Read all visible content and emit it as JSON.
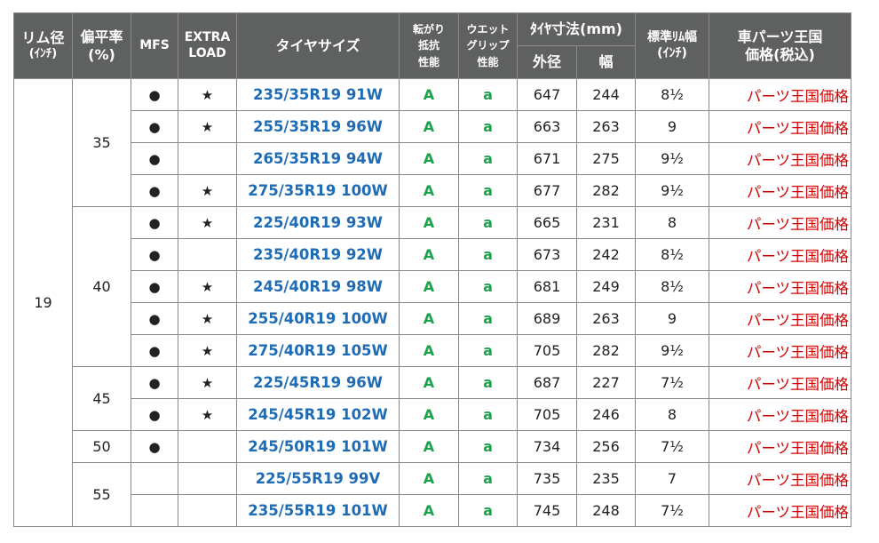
{
  "headers": {
    "rim_line1": "リム径",
    "rim_line2": "(ｲﾝﾁ)",
    "aspect_line1": "偏平率",
    "aspect_line2": "(%)",
    "mfs": "MFS",
    "xl_line1": "EXTRA",
    "xl_line2": "LOAD",
    "size": "タイヤサイズ",
    "rr_line1": "転がり",
    "rr_line2": "抵抗",
    "rr_line3": "性能",
    "wet_line1": "ウエット",
    "wet_line2": "グリップ",
    "wet_line3": "性能",
    "dim": "ﾀｲﾔ寸法(mm)",
    "dim_outer": "外径",
    "dim_width": "幅",
    "std_rim_line1": "標準ﾘﾑ幅",
    "std_rim_line2": "(ｲﾝﾁ)",
    "price_line1": "車パーツ王国",
    "price_line2": "価格(税込)"
  },
  "rim_value": "19",
  "groups": [
    {
      "aspect": "35",
      "rows": [
        {
          "mfs": "●",
          "xl": "★",
          "size": "235/35R19 91W",
          "rr": "A",
          "wet": "a",
          "outer": "647",
          "width": "244",
          "rim": "8½",
          "price": "パーツ王国価格"
        },
        {
          "mfs": "●",
          "xl": "★",
          "size": "255/35R19 96W",
          "rr": "A",
          "wet": "a",
          "outer": "663",
          "width": "263",
          "rim": "9",
          "price": "パーツ王国価格"
        },
        {
          "mfs": "●",
          "xl": "",
          "size": "265/35R19 94W",
          "rr": "A",
          "wet": "a",
          "outer": "671",
          "width": "275",
          "rim": "9½",
          "price": "パーツ王国価格"
        },
        {
          "mfs": "●",
          "xl": "★",
          "size": "275/35R19 100W",
          "rr": "A",
          "wet": "a",
          "outer": "677",
          "width": "282",
          "rim": "9½",
          "price": "パーツ王国価格"
        }
      ]
    },
    {
      "aspect": "40",
      "rows": [
        {
          "mfs": "●",
          "xl": "★",
          "size": "225/40R19 93W",
          "rr": "A",
          "wet": "a",
          "outer": "665",
          "width": "231",
          "rim": "8",
          "price": "パーツ王国価格"
        },
        {
          "mfs": "●",
          "xl": "",
          "size": "235/40R19 92W",
          "rr": "A",
          "wet": "a",
          "outer": "673",
          "width": "242",
          "rim": "8½",
          "price": "パーツ王国価格"
        },
        {
          "mfs": "●",
          "xl": "★",
          "size": "245/40R19 98W",
          "rr": "A",
          "wet": "a",
          "outer": "681",
          "width": "249",
          "rim": "8½",
          "price": "パーツ王国価格"
        },
        {
          "mfs": "●",
          "xl": "★",
          "size": "255/40R19 100W",
          "rr": "A",
          "wet": "a",
          "outer": "689",
          "width": "263",
          "rim": "9",
          "price": "パーツ王国価格"
        },
        {
          "mfs": "●",
          "xl": "★",
          "size": "275/40R19 105W",
          "rr": "A",
          "wet": "a",
          "outer": "705",
          "width": "282",
          "rim": "9½",
          "price": "パーツ王国価格"
        }
      ]
    },
    {
      "aspect": "45",
      "rows": [
        {
          "mfs": "●",
          "xl": "★",
          "size": "225/45R19 96W",
          "rr": "A",
          "wet": "a",
          "outer": "687",
          "width": "227",
          "rim": "7½",
          "price": "パーツ王国価格"
        },
        {
          "mfs": "●",
          "xl": "★",
          "size": "245/45R19 102W",
          "rr": "A",
          "wet": "a",
          "outer": "705",
          "width": "246",
          "rim": "8",
          "price": "パーツ王国価格"
        }
      ]
    },
    {
      "aspect": "50",
      "rows": [
        {
          "mfs": "●",
          "xl": "",
          "size": "245/50R19 101W",
          "rr": "A",
          "wet": "a",
          "outer": "734",
          "width": "256",
          "rim": "7½",
          "price": "パーツ王国価格"
        }
      ]
    },
    {
      "aspect": "55",
      "rows": [
        {
          "mfs": "",
          "xl": "",
          "size": "225/55R19 99V",
          "rr": "A",
          "wet": "a",
          "outer": "735",
          "width": "235",
          "rim": "7",
          "price": "パーツ王国価格"
        },
        {
          "mfs": "",
          "xl": "",
          "size": "235/55R19 101W",
          "rr": "A",
          "wet": "a",
          "outer": "745",
          "width": "248",
          "rim": "7½",
          "price": "パーツ王国価格"
        }
      ]
    }
  ]
}
